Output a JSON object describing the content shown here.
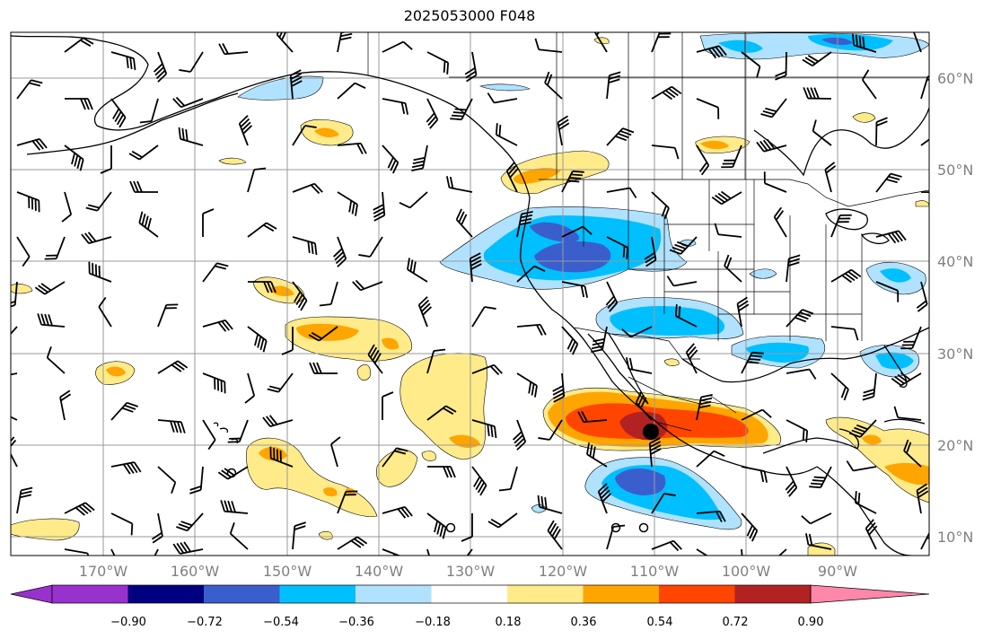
{
  "title": "2025053000 F048",
  "lat_labels": [
    "60°N",
    "50°N",
    "40°N",
    "30°N",
    "20°N",
    "10°N"
  ],
  "lon_labels": [
    "170°W",
    "160°W",
    "150°W",
    "140°W",
    "130°W",
    "120°W",
    "110°W",
    "100°W",
    "90°W"
  ],
  "colorbar": {
    "ticks": [
      "−0.90",
      "−0.72",
      "−0.54",
      "−0.36",
      "−0.18",
      "0.18",
      "0.36",
      "0.54",
      "0.72",
      "0.90"
    ],
    "colors": [
      "#9932CC",
      "#000080",
      "#3A5FCD",
      "#00BFFF",
      "#B0E2FF",
      "#FFFFFF",
      "#FFEB8A",
      "#FFA500",
      "#FF4500",
      "#B22222",
      "#FF88AA"
    ]
  },
  "contour_colors": {
    "light_blue": "#B0E2FF",
    "blue": "#00BFFF",
    "dark_blue": "#3A5FCD",
    "yellow": "#FFEB8A",
    "orange": "#FFA500",
    "red": "#FF4500",
    "dark_red": "#B22222"
  }
}
